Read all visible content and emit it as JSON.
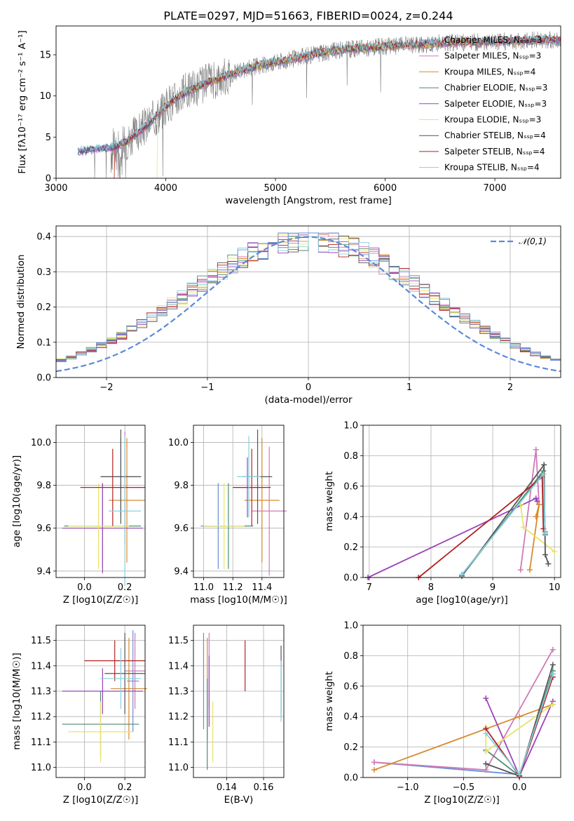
{
  "figure_title": "PLATE=0297, MJD=51663, FIBERID=0024, z=0.244",
  "chart_data": [
    {
      "id": "spectrum",
      "type": "line",
      "title": "PLATE=0297, MJD=51663, FIBERID=0024, z=0.244",
      "xlabel": "wavelength [Angstrom, rest frame]",
      "ylabel": "Flux [fλ10⁻¹⁷ erg cm⁻² s⁻¹ A⁻¹]",
      "xlim": [
        3000,
        7600
      ],
      "ylim": [
        0,
        18.5
      ],
      "xticks": [
        3000,
        4000,
        5000,
        6000,
        7000
      ],
      "yticks": [
        0,
        5,
        10,
        15
      ],
      "legend_position": "top-right",
      "legend": [
        "Chabrier MILES, N_SSP=3",
        "Salpeter MILES, N_SSP=3",
        "Kroupa MILES, N_SSP=4",
        "Chabrier ELODIE, N_SSP=3",
        "Salpeter ELODIE, N_SSP=3",
        "Kroupa ELODIE, N_SSP=3",
        "Chabrier STELIB, N_SSP=4",
        "Salpeter STELIB, N_SSP=4",
        "Kroupa STELIB, N_SSP=4"
      ],
      "series_colors": [
        "#6a8ed6",
        "#d07ab8",
        "#d98a2e",
        "#4f8a6e",
        "#9b45b8",
        "#e7e46a",
        "#555555",
        "#b22222",
        "#85d0df"
      ],
      "continuum": {
        "x": [
          3200,
          3400,
          3550,
          3650,
          3750,
          3850,
          3950,
          4050,
          4200,
          4400,
          4600,
          4800,
          5000,
          5200,
          5400,
          5600,
          5800,
          6000,
          6200,
          6400,
          6600,
          6800,
          7000,
          7200,
          7400
        ],
        "y": [
          3.3,
          3.6,
          3.8,
          4.5,
          5.6,
          6.7,
          8.0,
          9.3,
          10.6,
          11.7,
          12.7,
          13.5,
          14.1,
          14.6,
          15.2,
          15.6,
          15.8,
          16.0,
          16.2,
          16.3,
          16.5,
          16.5,
          16.6,
          16.7,
          16.8
        ]
      },
      "data_color": "#808080"
    },
    {
      "id": "residuals",
      "type": "line",
      "xlabel": "(data-model)/error",
      "ylabel": "Normed distribution",
      "xlim": [
        -2.5,
        2.5
      ],
      "ylim": [
        0,
        0.43
      ],
      "xticks": [
        -2,
        -1,
        0,
        1,
        2
      ],
      "yticks": [
        0.0,
        0.1,
        0.2,
        0.3,
        0.4
      ],
      "legend_position": "top-right",
      "normal_label": "𝒩(0,1)",
      "normal_color": "#5b8ad9"
    },
    {
      "id": "age_vs_Z",
      "type": "scatter",
      "xlabel": "Z [log10(Z/Z☉)]",
      "ylabel": "age  [log10(age/yr)]",
      "xlim": [
        -0.14,
        0.3
      ],
      "ylim": [
        9.37,
        10.08
      ],
      "xticks": [
        0.0,
        0.2
      ],
      "yticks": [
        9.4,
        9.6,
        9.8,
        10.0
      ],
      "points": [
        {
          "x": 0.18,
          "xerr": 0.1,
          "y": 9.84,
          "yerr": 0.18,
          "color": "#6a8ed6"
        },
        {
          "x": 0.2,
          "xerr": 0.1,
          "y": 9.79,
          "yerr": 0.26,
          "color": "#d07ab8"
        },
        {
          "x": 0.21,
          "xerr": 0.09,
          "y": 9.73,
          "yerr": 0.29,
          "color": "#d98a2e"
        },
        {
          "x": 0.09,
          "xerr": 0.19,
          "y": 9.61,
          "yerr": 0.2,
          "color": "#4f8a6e"
        },
        {
          "x": 0.09,
          "xerr": 0.2,
          "y": 9.6,
          "yerr": 0.21,
          "color": "#9b45b8"
        },
        {
          "x": 0.07,
          "xerr": 0.15,
          "y": 9.61,
          "yerr": 0.2,
          "color": "#e7e46a"
        },
        {
          "x": 0.18,
          "xerr": 0.1,
          "y": 9.84,
          "yerr": 0.22,
          "color": "#555555"
        },
        {
          "x": 0.14,
          "xerr": 0.16,
          "y": 9.79,
          "yerr": 0.18,
          "color": "#b22222"
        },
        {
          "x": 0.2,
          "xerr": 0.08,
          "y": 9.68,
          "yerr": 0.35,
          "color": "#85d0df"
        }
      ]
    },
    {
      "id": "age_vs_mass",
      "type": "scatter",
      "xlabel": "mass [log10(M/M☉)]",
      "ylabel": "",
      "xlim": [
        10.93,
        11.55
      ],
      "ylim": [
        9.37,
        10.08
      ],
      "xticks": [
        11.0,
        11.2,
        11.4
      ],
      "yticks": [
        9.4,
        9.6,
        9.8,
        10.0
      ],
      "points": [
        {
          "x": 11.1,
          "xerr": 0.12,
          "y": 9.61,
          "yerr": 0.2,
          "color": "#6a8ed6"
        },
        {
          "x": 11.45,
          "xerr": 0.12,
          "y": 9.68,
          "yerr": 0.3,
          "color": "#d07ab8"
        },
        {
          "x": 11.4,
          "xerr": 0.12,
          "y": 9.73,
          "yerr": 0.29,
          "color": "#d98a2e"
        },
        {
          "x": 11.17,
          "xerr": 0.17,
          "y": 9.61,
          "yerr": 0.2,
          "color": "#4f8a6e"
        },
        {
          "x": 11.3,
          "xerr": 0.09,
          "y": 9.79,
          "yerr": 0.14,
          "color": "#9b45b8"
        },
        {
          "x": 11.14,
          "xerr": 0.14,
          "y": 9.61,
          "yerr": 0.2,
          "color": "#e7e46a"
        },
        {
          "x": 11.37,
          "xerr": 0.1,
          "y": 9.84,
          "yerr": 0.22,
          "color": "#555555"
        },
        {
          "x": 11.33,
          "xerr": 0.13,
          "y": 9.79,
          "yerr": 0.18,
          "color": "#b22222"
        },
        {
          "x": 11.31,
          "xerr": 0.08,
          "y": 9.84,
          "yerr": 0.19,
          "color": "#85d0df"
        }
      ]
    },
    {
      "id": "massweight_vs_age",
      "type": "line",
      "xlabel": "age  [log10(age/yr)]",
      "ylabel": "mass weight",
      "xlim": [
        6.9,
        10.1
      ],
      "ylim": [
        0,
        1.0
      ],
      "xticks": [
        7,
        8,
        9,
        10
      ],
      "yticks": [
        0.0,
        0.2,
        0.4,
        0.6,
        0.8,
        1.0
      ],
      "series": [
        {
          "color": "#6a8ed6",
          "points": [
            [
              8.5,
              0.02
            ],
            [
              9.8,
              0.68
            ],
            [
              9.85,
              0.3
            ]
          ]
        },
        {
          "color": "#d07ab8",
          "points": [
            [
              9.45,
              0.05
            ],
            [
              9.7,
              0.84
            ],
            [
              9.75,
              0.48
            ]
          ]
        },
        {
          "color": "#d98a2e",
          "points": [
            [
              9.6,
              0.05
            ],
            [
              9.75,
              0.48
            ],
            [
              9.7,
              0.4
            ]
          ]
        },
        {
          "color": "#4f8a6e",
          "points": [
            [
              8.5,
              0.01
            ],
            [
              9.82,
              0.7
            ],
            [
              9.85,
              0.28
            ]
          ]
        },
        {
          "color": "#9b45b8",
          "points": [
            [
              6.98,
              0.0
            ],
            [
              9.7,
              0.52
            ],
            [
              9.72,
              0.5
            ]
          ]
        },
        {
          "color": "#e7e46a",
          "points": [
            [
              9.45,
              0.48
            ],
            [
              9.5,
              0.33
            ],
            [
              10.0,
              0.17
            ]
          ]
        },
        {
          "color": "#555555",
          "points": [
            [
              8.5,
              0.01
            ],
            [
              9.83,
              0.74
            ],
            [
              9.85,
              0.15
            ],
            [
              9.9,
              0.09
            ]
          ]
        },
        {
          "color": "#b22222",
          "points": [
            [
              7.8,
              0.0
            ],
            [
              9.8,
              0.66
            ],
            [
              9.82,
              0.32
            ]
          ]
        },
        {
          "color": "#85d0df",
          "points": [
            [
              8.5,
              0.02
            ],
            [
              9.82,
              0.68
            ],
            [
              9.85,
              0.29
            ]
          ]
        }
      ]
    },
    {
      "id": "mass_vs_Z",
      "type": "scatter",
      "xlabel": "Z [log10(Z/Z☉)]",
      "ylabel": "mass [log10(M/M☉)]",
      "xlim": [
        -0.14,
        0.3
      ],
      "ylim": [
        10.96,
        11.56
      ],
      "xticks": [
        0.0,
        0.2
      ],
      "yticks": [
        11.0,
        11.1,
        11.2,
        11.3,
        11.4,
        11.5
      ],
      "points": [
        {
          "x": 0.24,
          "xerr": 0.03,
          "y": 11.34,
          "yerr": 0.2,
          "color": "#6a8ed6"
        },
        {
          "x": 0.25,
          "xerr": 0.05,
          "y": 11.38,
          "yerr": 0.15,
          "color": "#d07ab8"
        },
        {
          "x": 0.22,
          "xerr": 0.09,
          "y": 11.31,
          "yerr": 0.2,
          "color": "#d98a2e"
        },
        {
          "x": 0.08,
          "xerr": 0.19,
          "y": 11.17,
          "yerr": 0.13,
          "color": "#4f8a6e"
        },
        {
          "x": 0.09,
          "xerr": 0.2,
          "y": 11.3,
          "yerr": 0.09,
          "color": "#9b45b8"
        },
        {
          "x": 0.08,
          "xerr": 0.16,
          "y": 11.14,
          "yerr": 0.12,
          "color": "#e7e46a"
        },
        {
          "x": 0.2,
          "xerr": 0.1,
          "y": 11.37,
          "yerr": 0.16,
          "color": "#555555"
        },
        {
          "x": 0.15,
          "xerr": 0.15,
          "y": 11.42,
          "yerr": 0.08,
          "color": "#b22222"
        },
        {
          "x": 0.18,
          "xerr": 0.1,
          "y": 11.35,
          "yerr": 0.12,
          "color": "#85d0df"
        }
      ]
    },
    {
      "id": "mass_vs_EBV",
      "type": "scatter",
      "xlabel": "E(B-V)",
      "ylabel": "",
      "xlim": [
        0.122,
        0.171
      ],
      "ylim": [
        10.96,
        11.56
      ],
      "xticks": [
        0.14,
        0.16
      ],
      "yticks": [
        11.0,
        11.1,
        11.2,
        11.3,
        11.4,
        11.5
      ],
      "points": [
        {
          "x": 0.1275,
          "y": 11.34,
          "yerr": 0.19,
          "color": "#6a8ed6"
        },
        {
          "x": 0.1305,
          "y": 11.38,
          "yerr": 0.15,
          "color": "#d07ab8"
        },
        {
          "x": 0.1295,
          "y": 11.31,
          "yerr": 0.2,
          "color": "#d98a2e"
        },
        {
          "x": 0.1295,
          "y": 11.17,
          "yerr": 0.18,
          "color": "#4f8a6e"
        },
        {
          "x": 0.1305,
          "y": 11.3,
          "yerr": 0.14,
          "color": "#9b45b8"
        },
        {
          "x": 0.1325,
          "y": 11.14,
          "yerr": 0.12,
          "color": "#e7e46a"
        },
        {
          "x": 0.1695,
          "y": 11.34,
          "yerr": 0.14,
          "color": "#555555"
        },
        {
          "x": 0.15,
          "y": 11.4,
          "yerr": 0.1,
          "color": "#b22222"
        },
        {
          "x": 0.1695,
          "y": 11.3,
          "yerr": 0.12,
          "color": "#85d0df"
        }
      ]
    },
    {
      "id": "massweight_vs_Z",
      "type": "line",
      "xlabel": "Z [log10(Z/Z☉)]",
      "ylabel": "mass weight",
      "xlim": [
        -1.4,
        0.37
      ],
      "ylim": [
        0,
        1.0
      ],
      "xticks": [
        -1.0,
        -0.5,
        0.0
      ],
      "yticks": [
        0.0,
        0.2,
        0.4,
        0.6,
        0.8,
        1.0
      ],
      "series": [
        {
          "color": "#6a8ed6",
          "points": [
            [
              -1.3,
              0.1
            ],
            [
              0.0,
              0.02
            ],
            [
              0.3,
              0.68
            ]
          ]
        },
        {
          "color": "#d07ab8",
          "points": [
            [
              -1.3,
              0.1
            ],
            [
              -0.3,
              0.05
            ],
            [
              0.3,
              0.84
            ]
          ]
        },
        {
          "color": "#d98a2e",
          "points": [
            [
              -1.3,
              0.05
            ],
            [
              0.0,
              0.4
            ],
            [
              0.3,
              0.48
            ]
          ]
        },
        {
          "color": "#4f8a6e",
          "points": [
            [
              -0.3,
              0.18
            ],
            [
              0.0,
              0.01
            ],
            [
              0.3,
              0.7
            ]
          ]
        },
        {
          "color": "#9b45b8",
          "points": [
            [
              -0.3,
              0.52
            ],
            [
              0.0,
              0.01
            ],
            [
              0.3,
              0.5
            ]
          ]
        },
        {
          "color": "#e7e46a",
          "points": [
            [
              -0.3,
              0.33
            ],
            [
              -0.3,
              0.17
            ],
            [
              0.3,
              0.48
            ]
          ]
        },
        {
          "color": "#555555",
          "points": [
            [
              -0.3,
              0.09
            ],
            [
              0.0,
              0.01
            ],
            [
              0.3,
              0.74
            ]
          ]
        },
        {
          "color": "#b22222",
          "points": [
            [
              -0.3,
              0.32
            ],
            [
              0.0,
              0.01
            ],
            [
              0.3,
              0.66
            ]
          ]
        },
        {
          "color": "#85d0df",
          "points": [
            [
              -0.3,
              0.29
            ],
            [
              0.0,
              0.02
            ],
            [
              0.3,
              0.68
            ]
          ]
        }
      ]
    }
  ]
}
